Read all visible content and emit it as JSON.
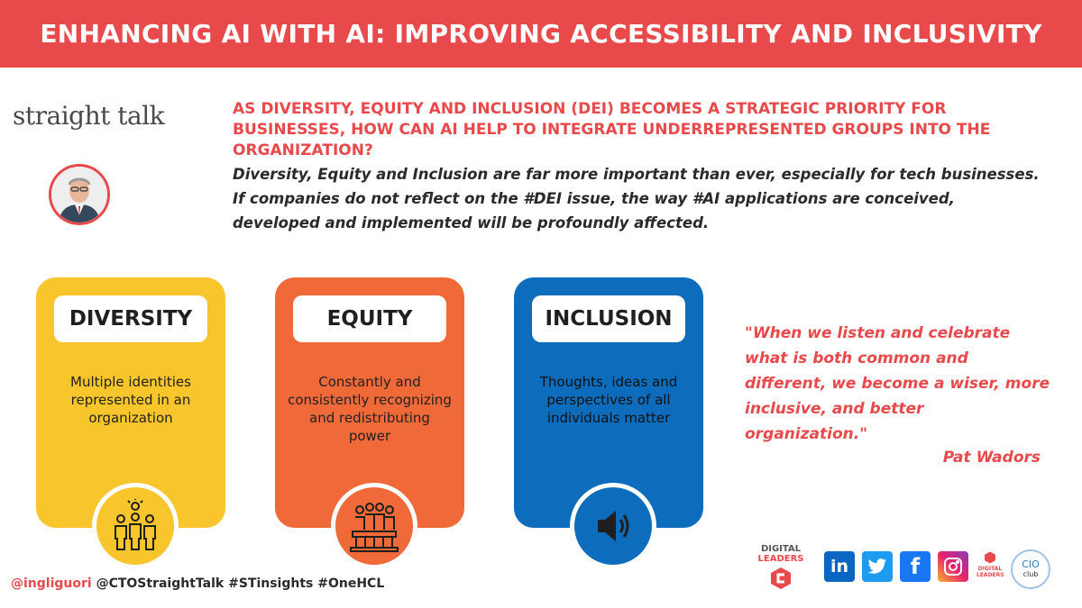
{
  "header": {
    "title": "ENHANCING AI WITH AI: IMPROVING ACCESSIBILITY AND INCLUSIVITY"
  },
  "logo": {
    "part1": "straight",
    "part2": "talk"
  },
  "question": "AS DIVERSITY, EQUITY AND INCLUSION (DEI) BECOMES A STRATEGIC PRIORITY FOR BUSINESSES, HOW CAN AI HELP TO INTEGRATE UNDERREPRESENTED GROUPS INTO THE ORGANIZATION?",
  "intro": "Diversity, Equity and Inclusion are far more important than ever, especially for tech businesses. If companies do not reflect on the #DEI issue, the way #AI applications are conceived, developed and implemented will be profoundly affected.",
  "cards": [
    {
      "title": "DIVERSITY",
      "desc": "Multiple identities represented in an organization",
      "color": "#f9c52c",
      "icon": "people-group-icon"
    },
    {
      "title": "EQUITY",
      "desc": "Constantly and consistently recognizing and redistributing power",
      "color": "#f06a39",
      "icon": "podium-people-icon"
    },
    {
      "title": "INCLUSION",
      "desc": "Thoughts, ideas and perspectives of all individuals matter",
      "color": "#0e6cbc",
      "icon": "speaker-icon"
    }
  ],
  "quote": {
    "text": "\"When we listen and celebrate what is both common and different, we become a wiser, more inclusive, and better organization.\"",
    "author": "Pat Wadors"
  },
  "footer": {
    "handle": "@ingliguori",
    "tags": " @CTOStraightTalk #STinsights #OneHCL"
  },
  "brand": {
    "digital": "DIGITAL",
    "leaders": "LEADERS",
    "small_digital": "DIGITAL",
    "small_leaders": "LEADERS",
    "cio": "CIO",
    "club": "club"
  },
  "social": {
    "linkedin": "in",
    "facebook": "f"
  },
  "colors": {
    "accent": "#e8494b",
    "diversity": "#f9c52c",
    "equity": "#f06a39",
    "inclusion": "#0e6cbc"
  }
}
